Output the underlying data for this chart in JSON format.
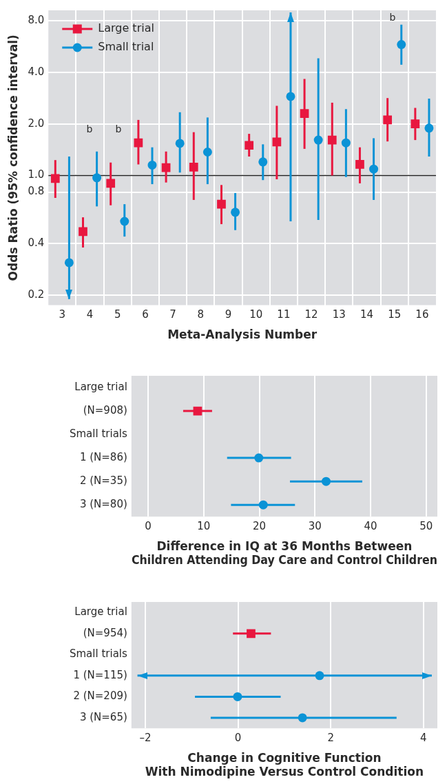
{
  "chart_data": [
    {
      "type": "scatter",
      "xlabel": "Meta-Analysis Number",
      "ylabel": "Odds Ratio (95% confidence interval)",
      "categories": [
        "3",
        "4",
        "5",
        "6",
        "7",
        "8",
        "9",
        "10",
        "11",
        "12",
        "13",
        "14",
        "15",
        "16"
      ],
      "log": "y",
      "ylim": [
        0.175,
        9.2
      ],
      "yticks": [
        0.2,
        0.4,
        0.8,
        {
          "value": 1,
          "label": "1.0"
        },
        {
          "value": 2,
          "label": "2.0"
        },
        {
          "value": 4,
          "label": "4.0"
        },
        {
          "value": 8,
          "label": "8.0"
        }
      ],
      "grid": true,
      "legend": "top left",
      "series": [
        {
          "name": "Large trial",
          "color": "#e8173f",
          "marker": "square",
          "values": [
            0.96,
            0.47,
            0.9,
            1.55,
            1.11,
            1.12,
            0.68,
            1.5,
            1.57,
            2.3,
            1.61,
            1.16,
            2.11,
            2.0
          ],
          "errors": [
            [
              0.74,
              1.23
            ],
            [
              0.38,
              0.57
            ],
            [
              0.67,
              1.19
            ],
            [
              1.16,
              2.11
            ],
            [
              0.91,
              1.38
            ],
            [
              0.72,
              1.79
            ],
            [
              0.52,
              0.88
            ],
            [
              1.29,
              1.75
            ],
            [
              0.95,
              2.55
            ],
            [
              1.43,
              3.66
            ],
            [
              1.0,
              2.66
            ],
            [
              0.9,
              1.46
            ],
            [
              1.58,
              2.83
            ],
            [
              1.61,
              2.48
            ]
          ]
        },
        {
          "name": "Small trial",
          "color": "#0b93d6",
          "marker": "circle",
          "values": [
            0.31,
            0.97,
            0.54,
            1.15,
            1.54,
            1.37,
            0.61,
            1.2,
            2.89,
            1.61,
            1.55,
            1.09,
            5.81,
            1.89
          ],
          "errors": [
            [
              0.19,
              1.29
            ],
            [
              0.66,
              1.38
            ],
            [
              0.44,
              0.68
            ],
            [
              0.89,
              1.46
            ],
            [
              1.04,
              2.34
            ],
            [
              0.89,
              2.18
            ],
            [
              0.48,
              0.79
            ],
            [
              0.94,
              1.52
            ],
            [
              0.54,
              8.95
            ],
            [
              0.55,
              4.83
            ],
            [
              0.98,
              2.44
            ],
            [
              0.72,
              1.65
            ],
            [
              4.43,
              7.59
            ],
            [
              1.29,
              2.81
            ]
          ]
        }
      ],
      "ref_lines": [
        {
          "axis": "y",
          "value": 1,
          "color": "#222222"
        }
      ],
      "annotations": [
        "b",
        "b",
        "b"
      ]
    },
    {
      "type": "scatter",
      "orientation": "horizontal",
      "xlabel": "Difference in IQ at 36 Months Between\nChildren Attending Day Care and Control Children",
      "categories": [
        "Large trial",
        "(N=908)",
        "Small trials",
        "1 (N=86)",
        "2 (N=35)",
        "3 (N=80)"
      ],
      "xlim": [
        -3,
        52
      ],
      "xticks": [
        0,
        10,
        20,
        30,
        40,
        50
      ],
      "grid": "x",
      "series": [
        {
          "color": "#e8173f",
          "marker": "square",
          "values": [
            null,
            8.9,
            null,
            null,
            null,
            null
          ],
          "errors": [
            null,
            [
              6.3,
              11.5
            ],
            null,
            null,
            null,
            null
          ]
        },
        {
          "color": "#0b93d6",
          "marker": "circle",
          "values": [
            null,
            null,
            null,
            19.9,
            32.0,
            20.7
          ],
          "errors": [
            null,
            null,
            null,
            [
              14.2,
              25.7
            ],
            [
              25.5,
              38.5
            ],
            [
              14.9,
              26.4
            ]
          ]
        }
      ]
    },
    {
      "type": "scatter",
      "orientation": "horizontal",
      "xlabel": "Change in Cognitive Function\nWith Nimodipine Versus Control Condition",
      "categories": [
        "Large trial",
        "(N=954)",
        "Small trials",
        "1 (N=115)",
        "2 (N=209)",
        "3 (N=65)"
      ],
      "xlim": [
        -2.3,
        4.3
      ],
      "xticks": [
        {
          "value": -2,
          "label": "–2"
        },
        0,
        2,
        4
      ],
      "grid": "x",
      "series": [
        {
          "color": "#e8173f",
          "marker": "square",
          "values": [
            null,
            0.28,
            null,
            null,
            null,
            null
          ],
          "errors": [
            null,
            [
              -0.11,
              0.71
            ],
            null,
            null,
            null,
            null
          ]
        },
        {
          "color": "#0b93d6",
          "marker": "circle",
          "values": [
            null,
            null,
            null,
            1.76,
            -0.01,
            1.39
          ],
          "errors": [
            null,
            null,
            null,
            [
              -2.17,
              4.18
            ],
            [
              -0.93,
              0.92
            ],
            [
              -0.59,
              3.42
            ]
          ]
        }
      ]
    }
  ]
}
